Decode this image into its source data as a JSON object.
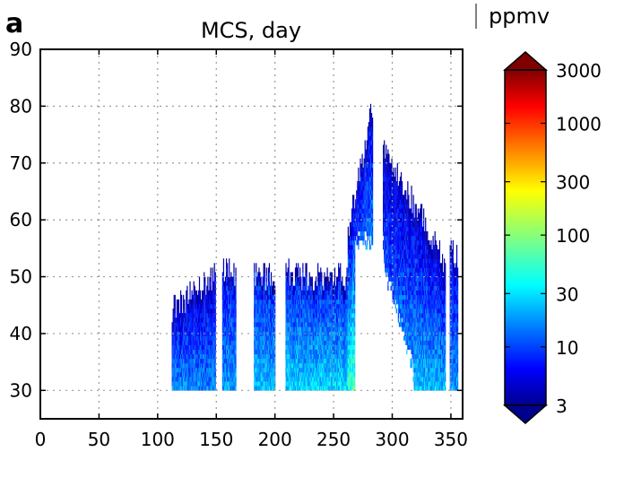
{
  "chart_data": {
    "type": "heatmap",
    "panel_label": "a",
    "title": "MCS, day",
    "xlabel": "",
    "ylabel": "",
    "xlim": [
      0,
      360
    ],
    "ylim": [
      25,
      90
    ],
    "x_ticks": [
      0,
      50,
      100,
      150,
      200,
      250,
      300,
      350
    ],
    "y_ticks": [
      30,
      40,
      50,
      60,
      70,
      80,
      90
    ],
    "grid": true,
    "colorbar": {
      "label": "ppmv",
      "scale": "log",
      "range": [
        3,
        3000
      ],
      "ticks": [
        3,
        10,
        30,
        100,
        300,
        1000,
        3000
      ],
      "colormap": "jet",
      "extend": "both"
    },
    "columns": [
      {
        "x_start": 112,
        "x_end": 149,
        "bottom": 30,
        "top_start": 44,
        "top_end": 50,
        "level_top": 5,
        "level_bottom": 18
      },
      {
        "x_start": 155,
        "x_end": 167,
        "bottom": 30,
        "top_start": 51,
        "top_end": 50,
        "level_top": 7,
        "level_bottom": 20
      },
      {
        "x_start": 182,
        "x_end": 200,
        "bottom": 30,
        "top_start": 50,
        "top_end": 50,
        "level_top": 8,
        "level_bottom": 25
      },
      {
        "x_start": 209,
        "x_end": 262,
        "bottom": 30,
        "top_start": 50,
        "top_end": 50,
        "level_top": 8,
        "level_bottom": 30
      },
      {
        "x_start": 262,
        "x_end": 283,
        "bottom": 30,
        "top_start": 58,
        "top_end": 80,
        "level_top": 6,
        "level_bottom": 60
      },
      {
        "x_start": 292,
        "x_end": 345,
        "bottom": 30,
        "top_start": 73,
        "top_end": 52,
        "level_top": 5,
        "level_bottom": 25
      },
      {
        "x_start": 349,
        "x_end": 356,
        "bottom": 30,
        "top_start": 54,
        "top_end": 53,
        "level_top": 6,
        "level_bottom": 20
      }
    ],
    "gap_regions": [
      {
        "x_start": 268,
        "x_end": 292,
        "alt_below": 56
      },
      {
        "x_start": 292,
        "x_end": 318,
        "alt_below_start": 52,
        "alt_below_end": 33
      }
    ]
  }
}
